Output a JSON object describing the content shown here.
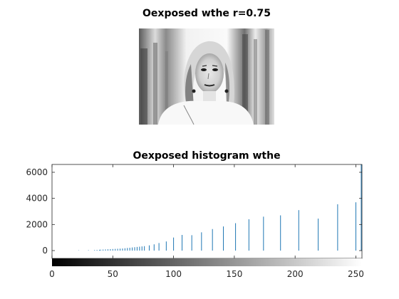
{
  "figure": {
    "image_title": "Oexposed wthe r=0.75",
    "histogram_title": "Oexposed histogram wthe"
  },
  "chart_data": {
    "type": "bar",
    "title": "Oexposed histogram wthe",
    "xlabel": "",
    "ylabel": "",
    "xlim": [
      0,
      255
    ],
    "ylim": [
      -600,
      6600
    ],
    "x_ticks": [
      0,
      50,
      100,
      150,
      200,
      250
    ],
    "y_ticks": [
      0,
      2000,
      4000,
      6000
    ],
    "bar_color": "#1f77b4",
    "colorbar": "grayscale 0-255",
    "x": [
      22,
      30,
      35,
      37,
      39,
      40,
      42,
      44,
      46,
      48,
      50,
      52,
      54,
      56,
      58,
      60,
      62,
      64,
      66,
      68,
      70,
      72,
      74,
      76,
      80,
      84,
      88,
      94,
      100,
      107,
      115,
      123,
      132,
      141,
      151,
      162,
      174,
      188,
      203,
      219,
      235,
      250,
      255
    ],
    "values": [
      20,
      30,
      40,
      50,
      60,
      70,
      80,
      90,
      100,
      110,
      120,
      130,
      140,
      150,
      160,
      180,
      200,
      220,
      240,
      260,
      280,
      300,
      320,
      340,
      400,
      480,
      580,
      700,
      1000,
      1200,
      1180,
      1400,
      1650,
      1850,
      2100,
      2400,
      2600,
      2700,
      3100,
      2450,
      3550,
      3700,
      6600
    ]
  }
}
